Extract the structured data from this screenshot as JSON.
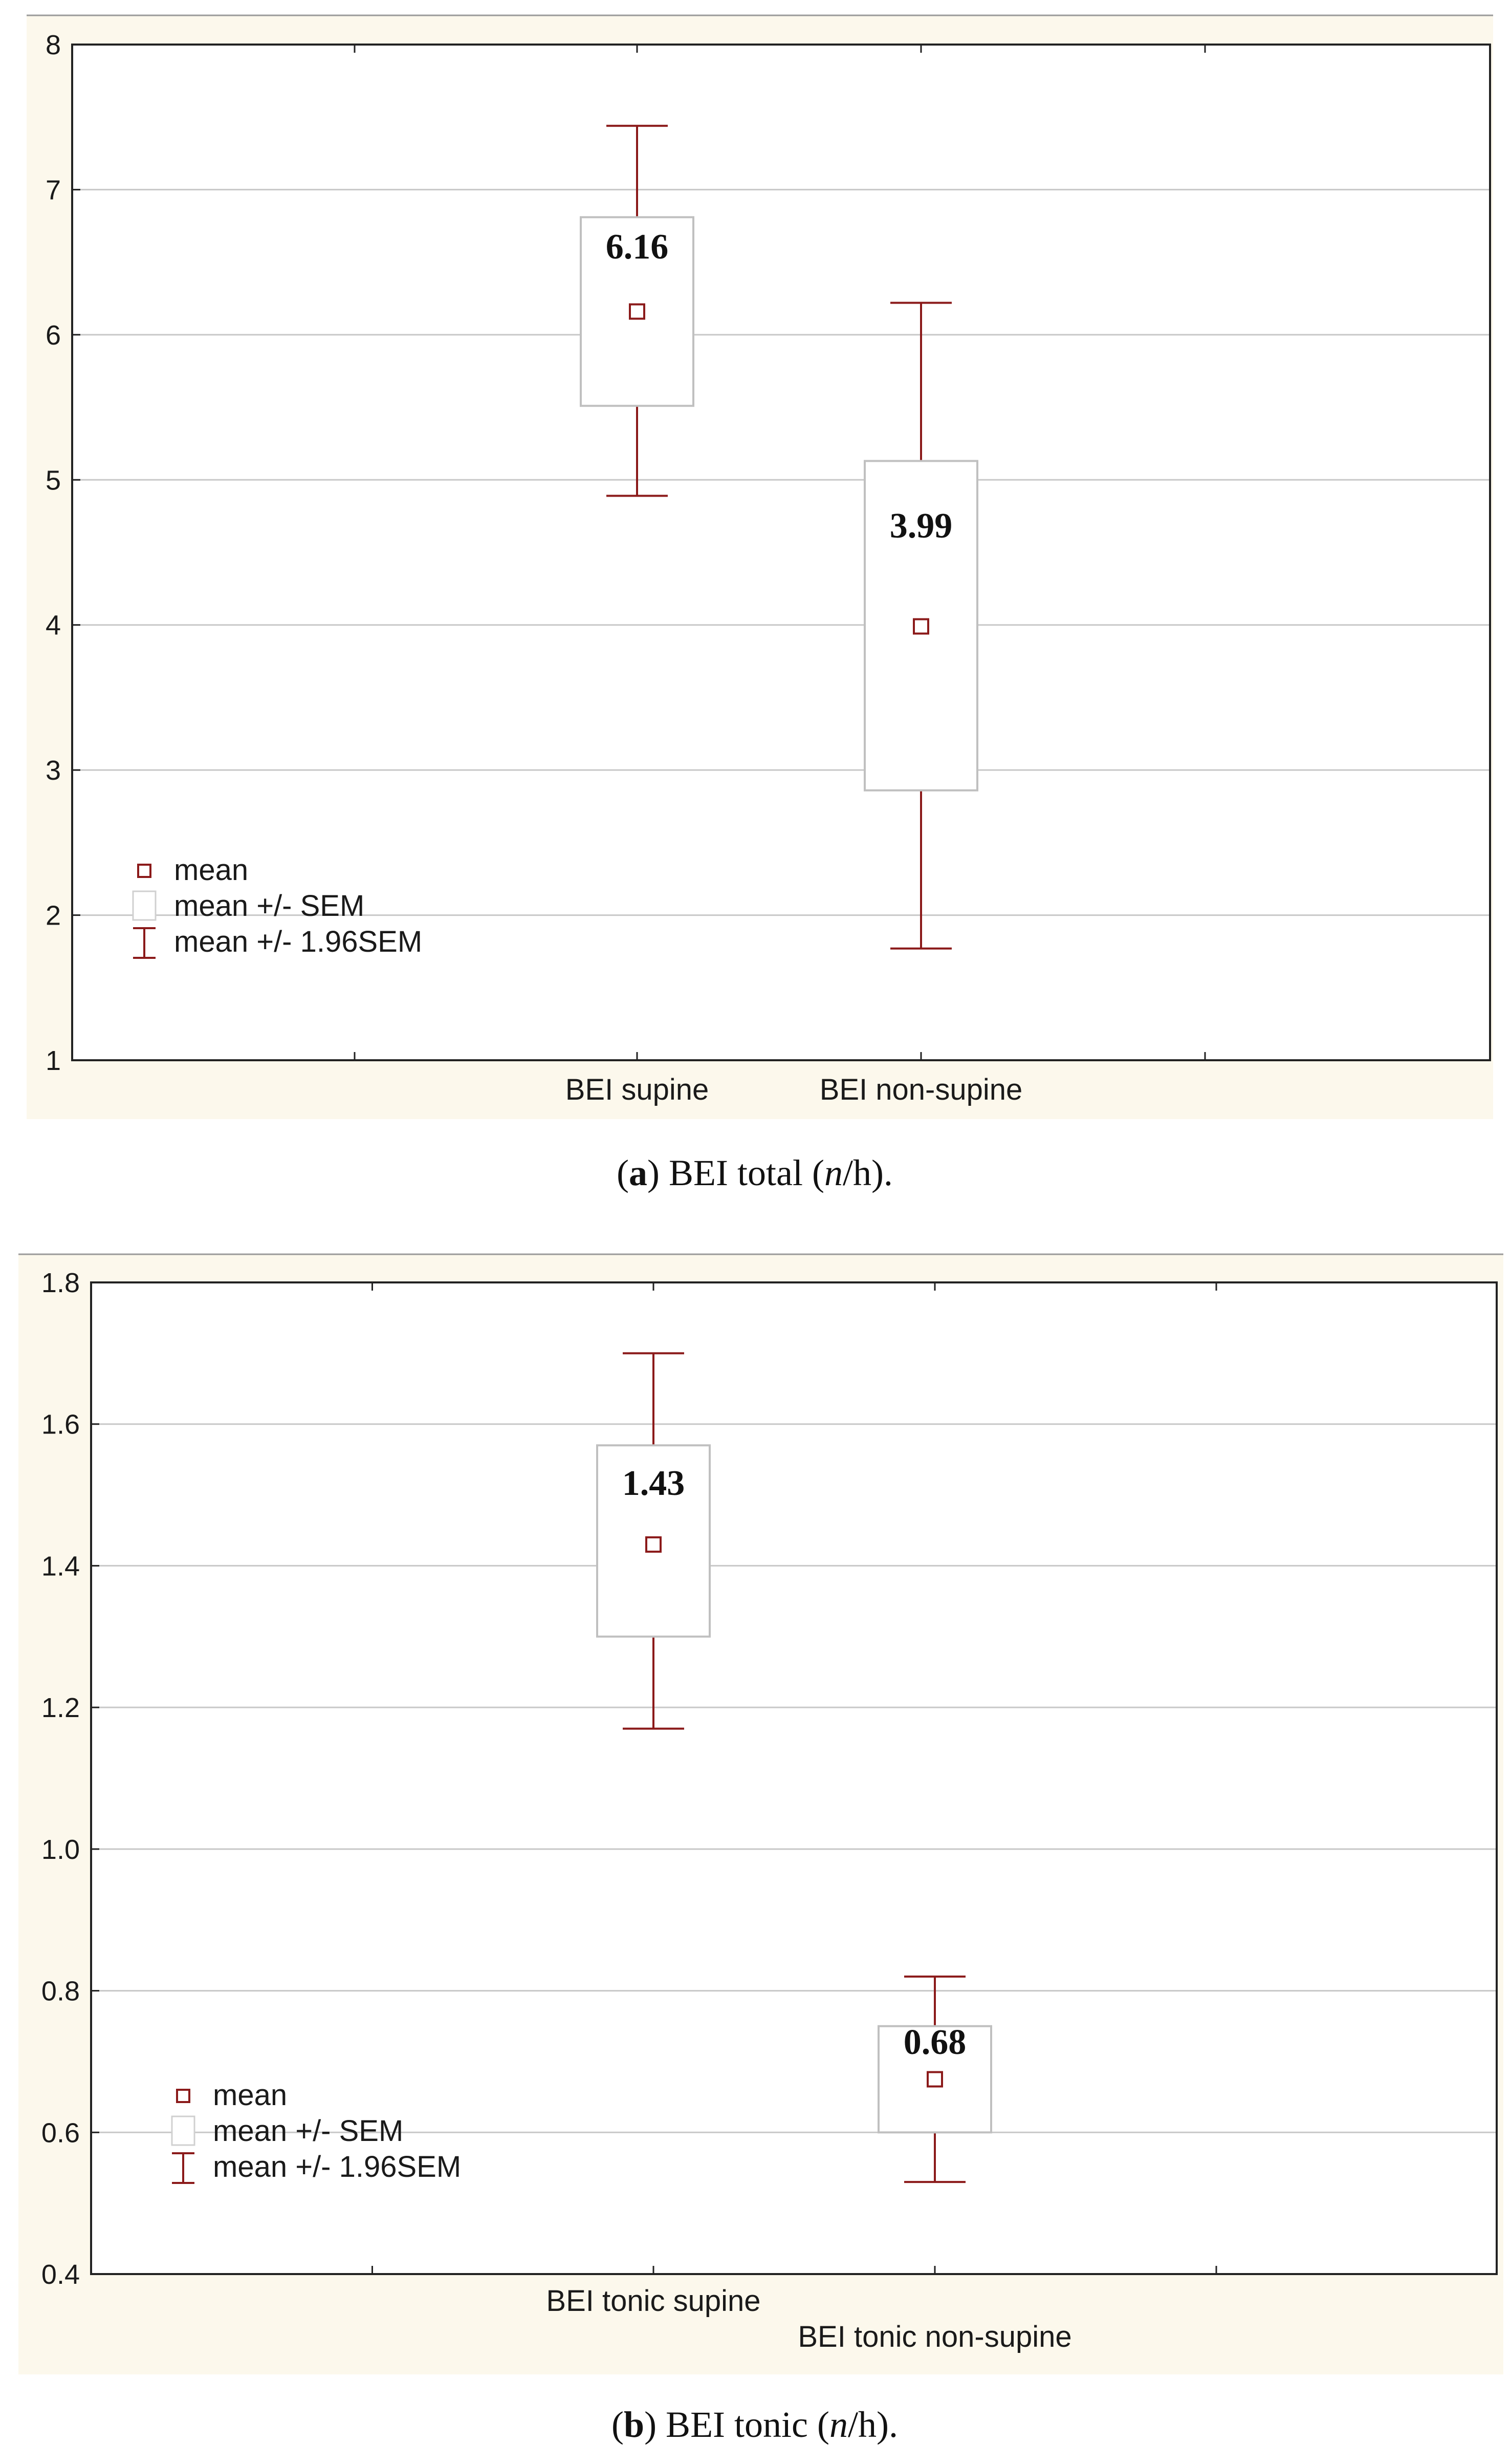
{
  "colors": {
    "panel_bg": "#fcf8ec",
    "plot_bg": "#ffffff",
    "accent": "#8b1a1a",
    "grid": "#c8c8c8",
    "box_stroke": "#c0c0c0",
    "axis": "#222222"
  },
  "legend": {
    "mean": "mean",
    "sem": "mean +/- SEM",
    "ci": "mean +/- 1.96SEM"
  },
  "chart_data": [
    {
      "type": "box",
      "caption": {
        "open": "(",
        "letter": "a",
        "mid": ") BEI total (",
        "unit_italic": "n",
        "close": "/h)."
      },
      "ylim": [
        1,
        8
      ],
      "yticks": [
        "1",
        "2",
        "3",
        "4",
        "5",
        "6",
        "7",
        "8"
      ],
      "ytick_values": [
        1,
        2,
        3,
        4,
        5,
        6,
        7,
        8
      ],
      "categories": [
        "BEI supine",
        "BEI non-supine"
      ],
      "series": [
        {
          "name": "BEI supine",
          "mean": 6.16,
          "sem_low": 5.51,
          "sem_high": 6.81,
          "ci_low": 4.89,
          "ci_high": 7.44,
          "label": "6.16"
        },
        {
          "name": "BEI non-supine",
          "mean": 3.99,
          "sem_low": 2.86,
          "sem_high": 5.13,
          "ci_low": 1.77,
          "ci_high": 6.22,
          "label": "3.99"
        }
      ]
    },
    {
      "type": "box",
      "caption": {
        "open": "(",
        "letter": "b",
        "mid": ") BEI tonic (",
        "unit_italic": "n",
        "close": "/h)."
      },
      "ylim": [
        0.4,
        1.8
      ],
      "yticks": [
        "0.4",
        "0.6",
        "0.8",
        "1.0",
        "1.2",
        "1.4",
        "1.6",
        "1.8"
      ],
      "ytick_values": [
        0.4,
        0.6,
        0.8,
        1.0,
        1.2,
        1.4,
        1.6,
        1.8
      ],
      "categories": [
        "BEI tonic supine",
        "BEI tonic non-supine"
      ],
      "series": [
        {
          "name": "BEI tonic supine",
          "mean": 1.43,
          "sem_low": 1.3,
          "sem_high": 1.57,
          "ci_low": 1.17,
          "ci_high": 1.7,
          "label": "1.43"
        },
        {
          "name": "BEI tonic non-supine",
          "mean": 0.675,
          "sem_low": 0.6,
          "sem_high": 0.75,
          "ci_low": 0.53,
          "ci_high": 0.82,
          "label": "0.68"
        }
      ]
    }
  ]
}
